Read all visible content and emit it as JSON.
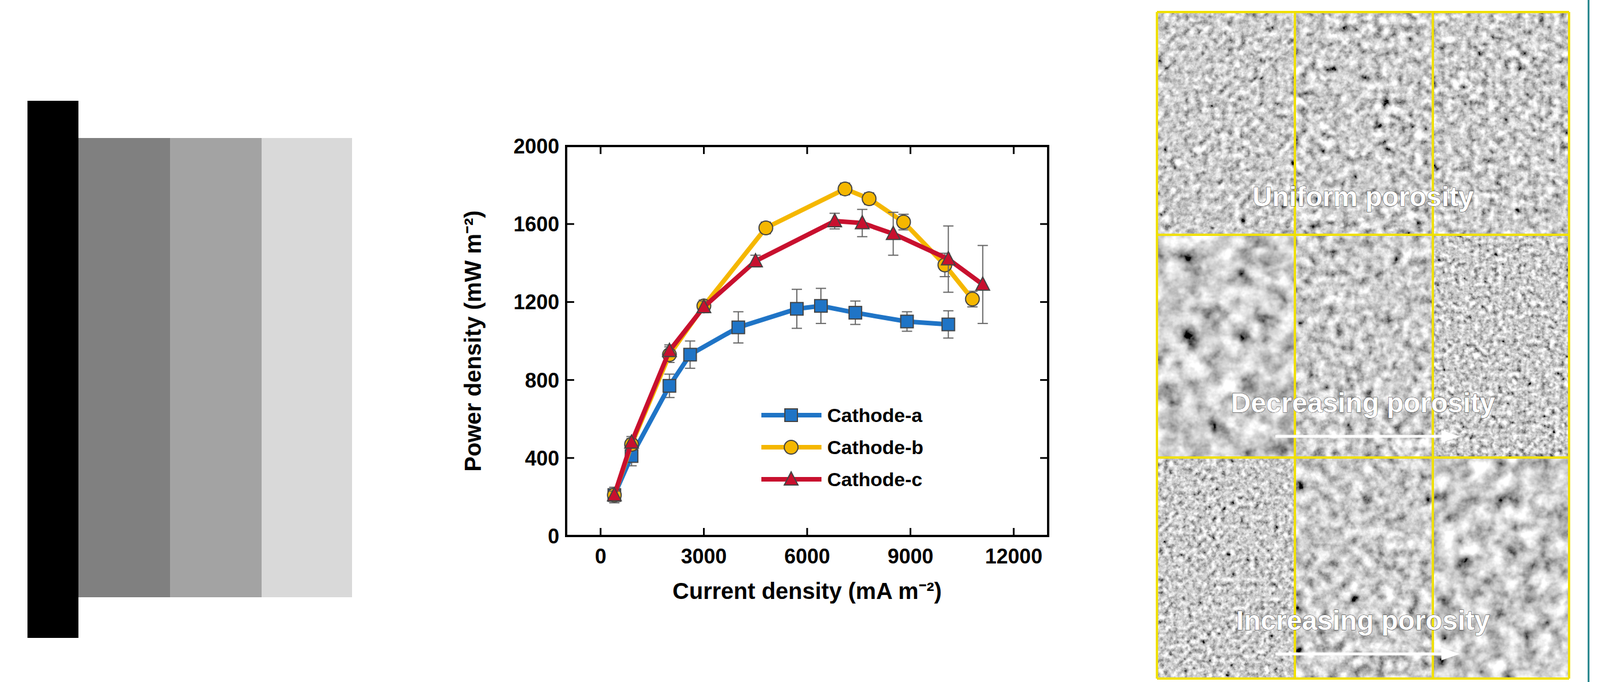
{
  "chart_data": {
    "type": "line",
    "x_label": "Current density (mA m⁻²)",
    "y_label": "Power density (mW m⁻²)",
    "xlim": [
      -1000,
      13000
    ],
    "xticks": [
      0,
      3000,
      6000,
      9000,
      12000
    ],
    "ylim": [
      0,
      2000
    ],
    "yticks": [
      0,
      400,
      800,
      1200,
      1600,
      2000
    ],
    "grid": false,
    "legend": "lower right",
    "series": [
      {
        "name": "Cathode-a",
        "color": "#1f74c6",
        "marker": "square",
        "line_style": "solid",
        "x": [
          400,
          900,
          2000,
          2600,
          4000,
          5700,
          6400,
          7400,
          8900,
          10100
        ],
        "values": [
          210,
          410,
          770,
          930,
          1070,
          1165,
          1180,
          1145,
          1100,
          1085
        ],
        "errors": [
          40,
          50,
          60,
          70,
          80,
          100,
          90,
          60,
          50,
          70
        ]
      },
      {
        "name": "Cathode-b",
        "color": "#f5b700",
        "marker": "circle",
        "line_style": "solid",
        "x": [
          400,
          900,
          2000,
          3000,
          4800,
          7100,
          7800,
          8800,
          10000,
          10800
        ],
        "values": [
          210,
          470,
          930,
          1180,
          1580,
          1780,
          1730,
          1610,
          1390,
          1215
        ],
        "errors": [
          20,
          30,
          40,
          30,
          30,
          30,
          30,
          40,
          60,
          40
        ]
      },
      {
        "name": "Cathode-c",
        "color": "#c8102e",
        "marker": "triangle",
        "line_style": "solid",
        "x": [
          400,
          900,
          2000,
          3000,
          4500,
          6800,
          7600,
          8500,
          10100,
          11100
        ],
        "values": [
          210,
          480,
          950,
          1175,
          1410,
          1615,
          1605,
          1550,
          1420,
          1290
        ],
        "errors": [
          20,
          30,
          30,
          30,
          30,
          40,
          70,
          110,
          170,
          200
        ]
      }
    ]
  },
  "sem_labels": [
    "Uniform porosity",
    "Decreasing porosity",
    "Increasing porosity"
  ]
}
